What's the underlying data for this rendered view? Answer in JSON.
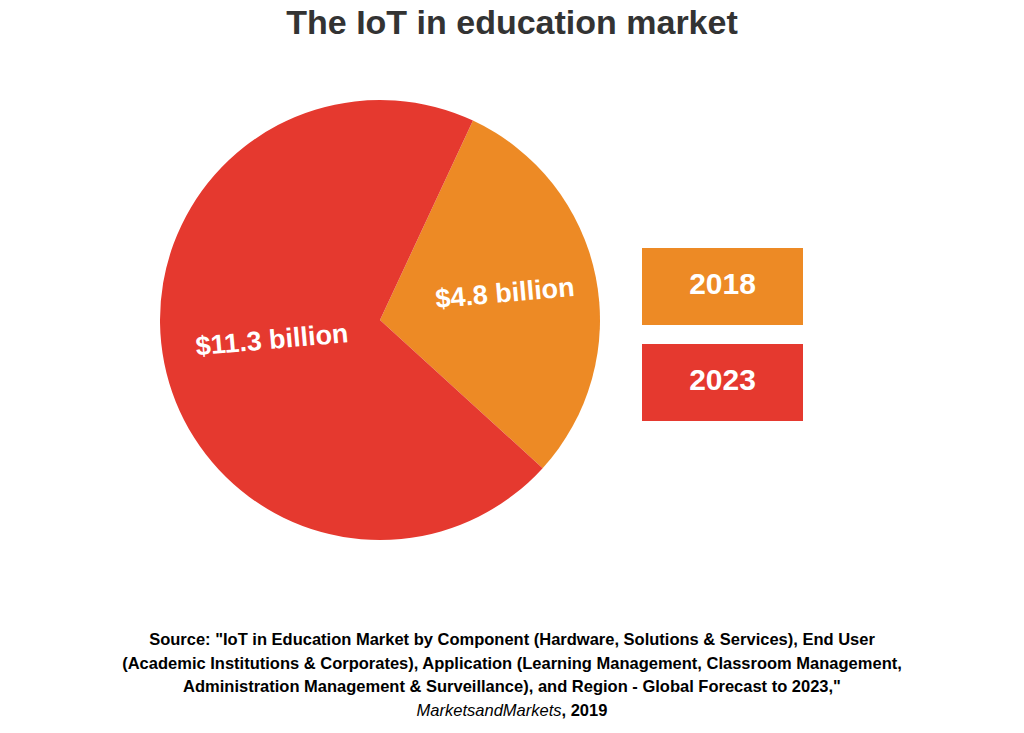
{
  "chart_data": {
    "type": "pie",
    "title": "The IoT in education market",
    "categories": [
      "2018",
      "2023"
    ],
    "values": [
      4.8,
      11.3
    ],
    "value_labels": [
      "$4.8 billion",
      "$11.3 billion"
    ],
    "colors": [
      "#ed8a25",
      "#e5392f"
    ],
    "data_labels": true,
    "legend": "right",
    "source": {
      "lines": [
        "Source: \"IoT in Education Market by Component (Hardware, Solutions & Services), End User",
        "(Academic Institutions & Corporates), Application (Learning Management, Classroom Management,",
        "Administration Management & Surveillance), and Region - Global Forecast to 2023,\""
      ],
      "publisher": "MarketsandMarkets",
      "suffix": ", 2019"
    }
  }
}
